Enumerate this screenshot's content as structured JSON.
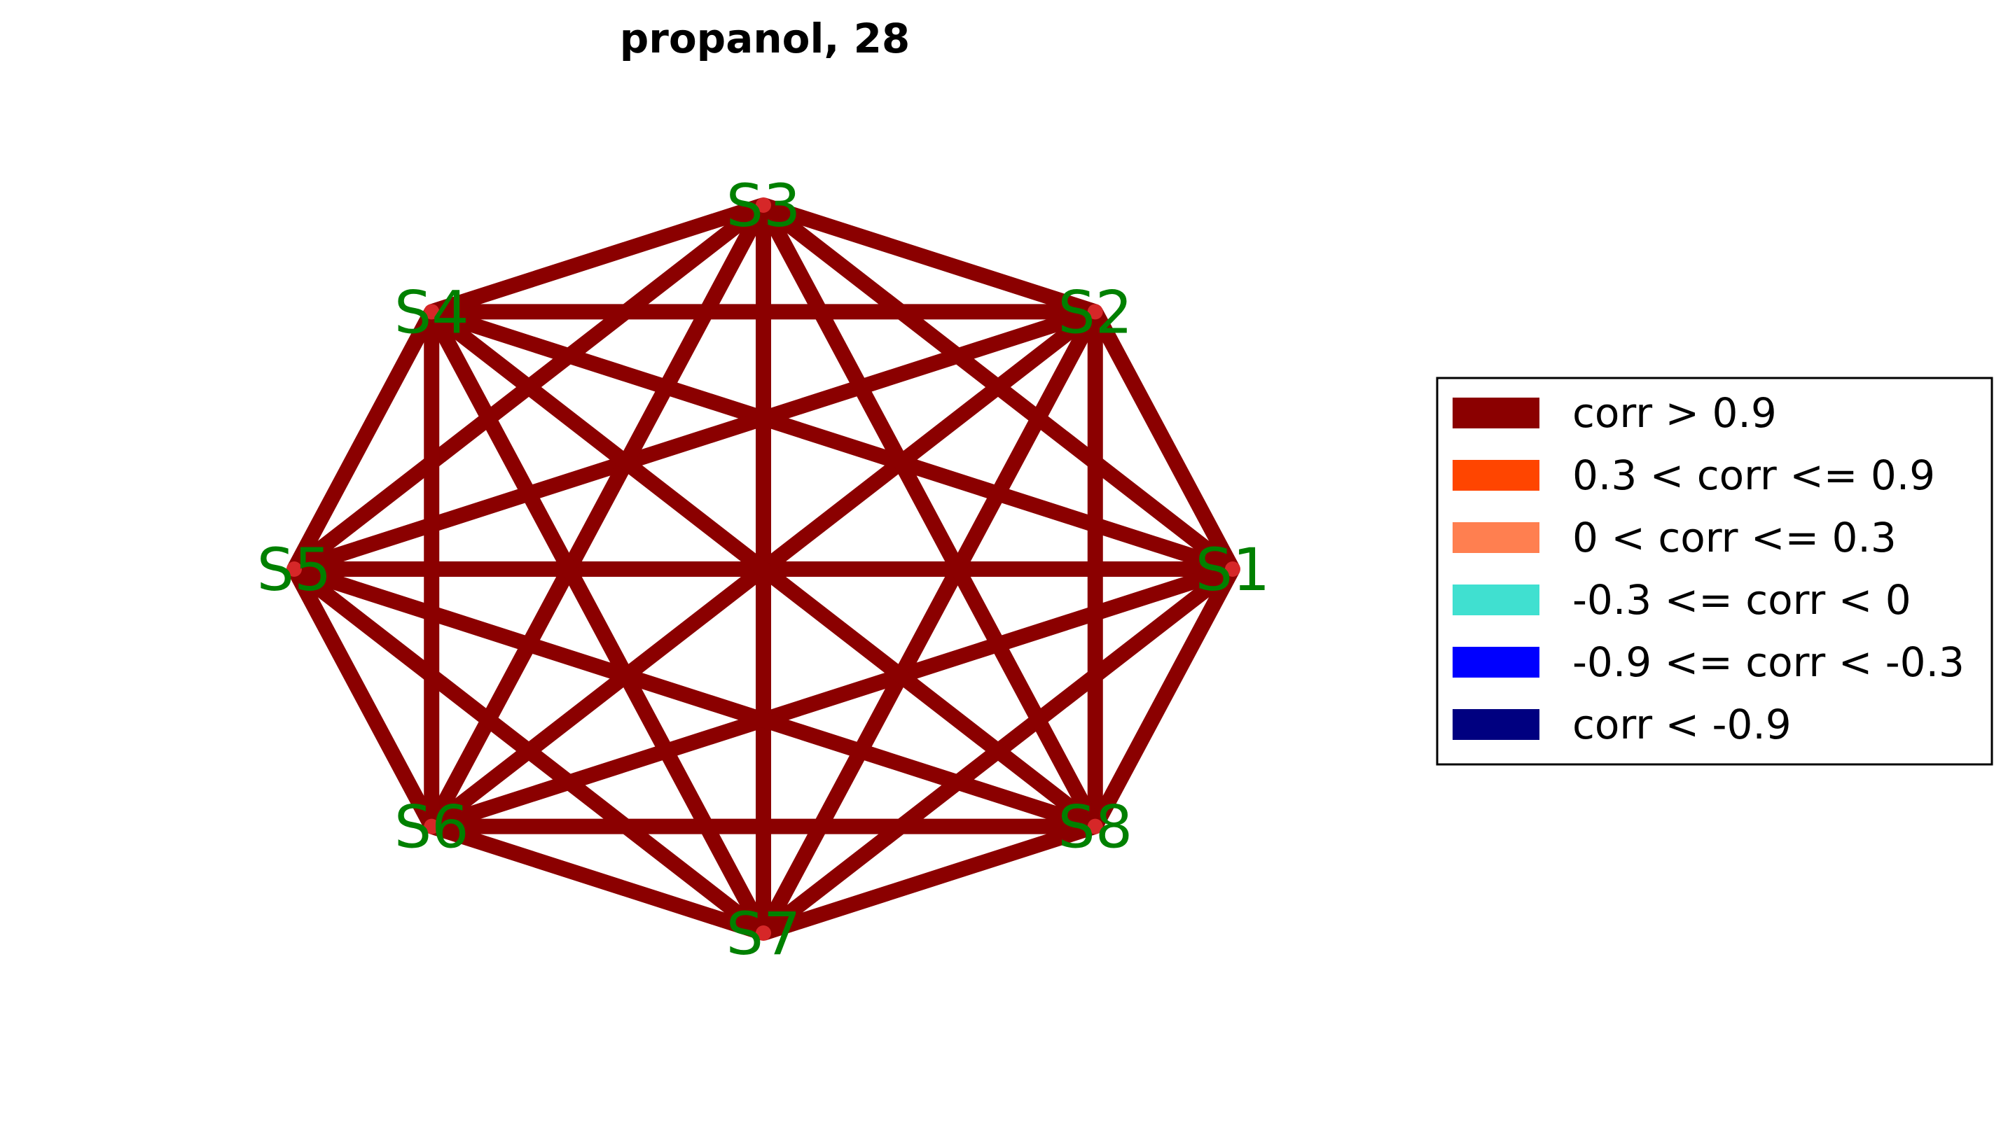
{
  "title": "propanol, 28",
  "graph": {
    "nodes": [
      {
        "id": "S1",
        "label": "S1"
      },
      {
        "id": "S2",
        "label": "S2"
      },
      {
        "id": "S3",
        "label": "S3"
      },
      {
        "id": "S4",
        "label": "S4"
      },
      {
        "id": "S5",
        "label": "S5"
      },
      {
        "id": "S6",
        "label": "S6"
      },
      {
        "id": "S7",
        "label": "S7"
      },
      {
        "id": "S8",
        "label": "S8"
      }
    ],
    "edges": [
      [
        "S1",
        "S2"
      ],
      [
        "S1",
        "S3"
      ],
      [
        "S1",
        "S4"
      ],
      [
        "S1",
        "S5"
      ],
      [
        "S1",
        "S6"
      ],
      [
        "S1",
        "S7"
      ],
      [
        "S1",
        "S8"
      ],
      [
        "S2",
        "S3"
      ],
      [
        "S2",
        "S4"
      ],
      [
        "S2",
        "S5"
      ],
      [
        "S2",
        "S6"
      ],
      [
        "S2",
        "S7"
      ],
      [
        "S2",
        "S8"
      ],
      [
        "S3",
        "S4"
      ],
      [
        "S3",
        "S5"
      ],
      [
        "S3",
        "S6"
      ],
      [
        "S3",
        "S7"
      ],
      [
        "S3",
        "S8"
      ],
      [
        "S4",
        "S5"
      ],
      [
        "S4",
        "S6"
      ],
      [
        "S4",
        "S7"
      ],
      [
        "S4",
        "S8"
      ],
      [
        "S5",
        "S6"
      ],
      [
        "S5",
        "S7"
      ],
      [
        "S5",
        "S8"
      ],
      [
        "S6",
        "S7"
      ],
      [
        "S6",
        "S8"
      ],
      [
        "S7",
        "S8"
      ]
    ],
    "edge_class": "corr > 0.9",
    "node_label_color": "#008000",
    "node_color": "#d62728"
  },
  "legend": [
    {
      "label": "corr > 0.9",
      "color": "#8b0000"
    },
    {
      "label": "0.3 < corr <= 0.9",
      "color": "#ff4500"
    },
    {
      "label": "0 < corr <= 0.3",
      "color": "#ff7f50"
    },
    {
      "label": "-0.3 <= corr < 0",
      "color": "#40e0d0"
    },
    {
      "label": "-0.9 <= corr < -0.3",
      "color": "#0000ff"
    },
    {
      "label": "corr < -0.9",
      "color": "#000080"
    }
  ]
}
